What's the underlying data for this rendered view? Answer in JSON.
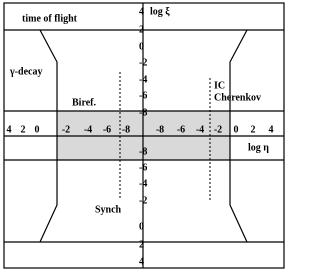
{
  "labels": {
    "time_of_flight": "time of flight",
    "log_xi": "log ξ",
    "gamma_decay": "γ-decay",
    "biref": "Biref.",
    "ic": "IC",
    "cherenkov": "Cherenkov",
    "synch": "Synch",
    "log_eta": "log η"
  },
  "y_axis_ticks_upper": [
    "4",
    "2",
    "0",
    "-2",
    "-4",
    "-6",
    "-8"
  ],
  "y_axis_ticks_lower": [
    "-8",
    "-6",
    "-4",
    "-2",
    "0",
    "2",
    "4"
  ],
  "x_axis_ticks_left": [
    "4",
    "2",
    "0",
    "-2",
    "-4",
    "-6",
    "-8"
  ],
  "x_axis_ticks_right": [
    "-8",
    "-6",
    "-4",
    "-2",
    "0",
    "2",
    "4"
  ]
}
